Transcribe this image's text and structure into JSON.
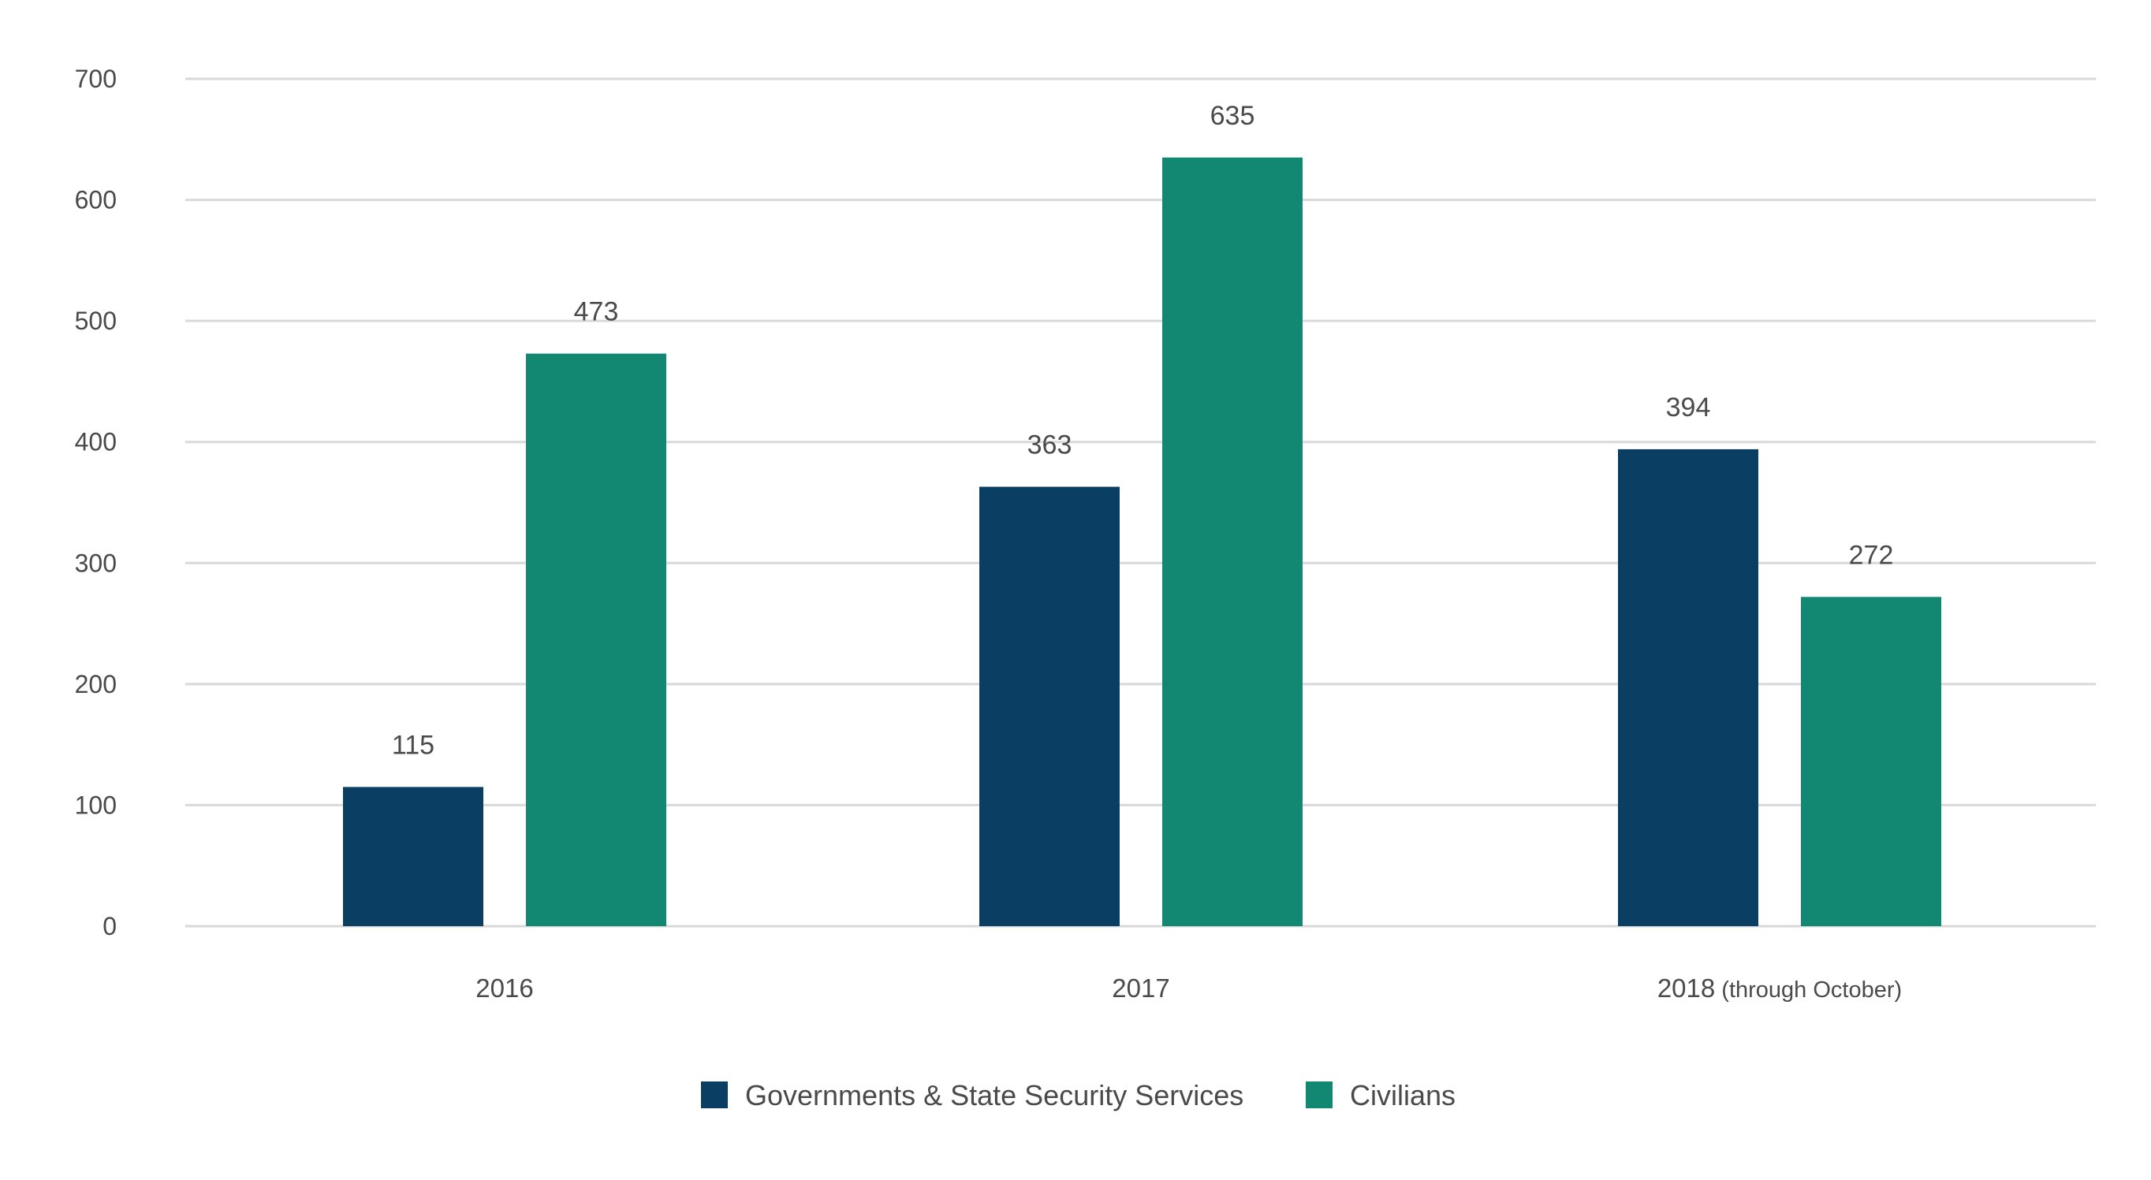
{
  "chart_data": {
    "type": "bar",
    "title": "",
    "xlabel": "",
    "ylabel": "",
    "ylim": [
      0,
      700
    ],
    "yticks": [
      0,
      100,
      200,
      300,
      400,
      500,
      600,
      700
    ],
    "grid": true,
    "legend_position": "bottom-center",
    "categories": [
      {
        "main": "2016",
        "sub": ""
      },
      {
        "main": "2017",
        "sub": ""
      },
      {
        "main": "2018",
        "sub": "(through October)"
      }
    ],
    "series": [
      {
        "name": "Governments & State Security Services",
        "color": "#0a3f63",
        "values": [
          115,
          363,
          394
        ]
      },
      {
        "name": "Civilians",
        "color": "#128873",
        "values": [
          473,
          635,
          272
        ]
      }
    ]
  },
  "style": {
    "grid_color": "#d9d9d9",
    "text_color": "#4a4a4a"
  }
}
